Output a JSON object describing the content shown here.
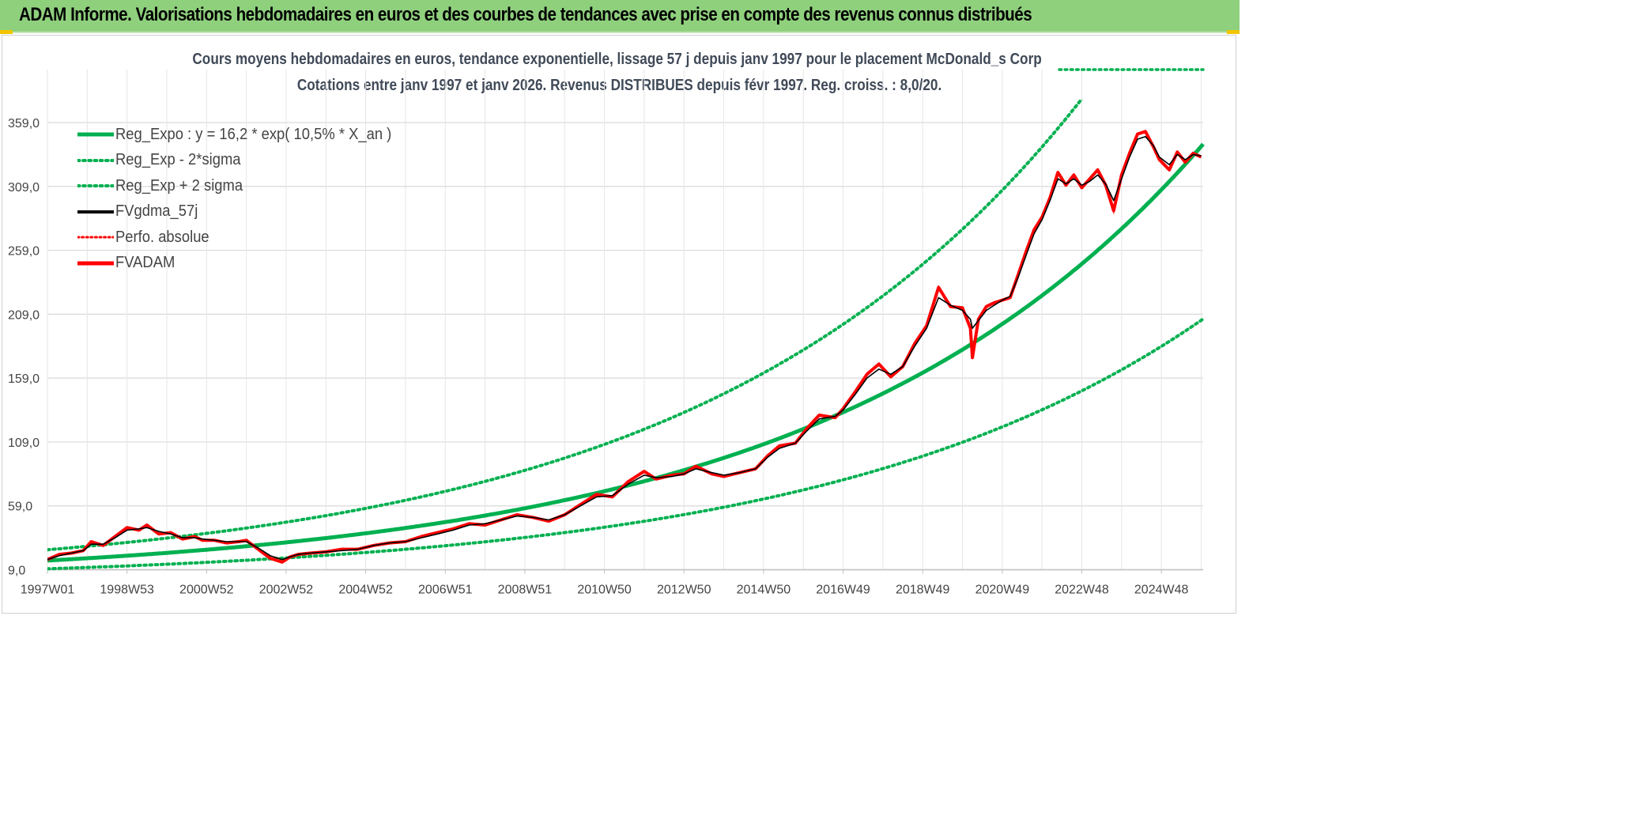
{
  "header": {
    "title": "ADAM Informe. Valorisations hebdomadaires en euros et des courbes de tendances avec prise en compte des revenus connus distribués"
  },
  "colors": {
    "header_bg": "#8fd07d",
    "corner_accent": "#f2c500",
    "reg_expo": "#00b050",
    "fvgdma": "#000000",
    "fvadam": "#ff0000",
    "perfo": "#ff0000",
    "grid": "#d9d9d9",
    "text": "#404a58"
  },
  "chart_data": {
    "type": "line",
    "title": "Cours moyens hebdomadaires en euros, tendance exponentielle, lissage 57 j depuis janv 1997 pour le placement McDonald_s Corp",
    "subtitle": "Cotations entre janv 1997 et janv 2026. Revenus DISTRIBUES depuis févr 1997. Reg. croiss. : 8,0/20.",
    "xlabel": "",
    "ylabel": "",
    "x_range_years": [
      1997.0,
      2026.05
    ],
    "ylim": [
      9.0,
      359.0
    ],
    "y_ticks": [
      "9,0",
      "59,0",
      "109,0",
      "159,0",
      "209,0",
      "259,0",
      "309,0",
      "359,0"
    ],
    "y_tick_values": [
      9,
      59,
      109,
      159,
      209,
      259,
      309,
      359
    ],
    "x_tick_labels": [
      "1997W01",
      "1998W53",
      "2000W52",
      "2002W52",
      "2004W52",
      "2006W51",
      "2008W51",
      "2010W50",
      "2012W50",
      "2014W50",
      "2016W49",
      "2018W49",
      "2020W49",
      "2022W48",
      "2024W48"
    ],
    "x_tick_years": [
      1997.0,
      1999.0,
      2001.0,
      2003.0,
      2005.0,
      2007.0,
      2009.0,
      2011.0,
      2013.0,
      2015.0,
      2017.0,
      2019.0,
      2021.0,
      2023.0,
      2025.0
    ],
    "grid": true,
    "legend_position": "top-left",
    "legend": [
      "Reg_Expo : y = 16,2 * exp( 10,5% *  X_an )",
      "Reg_Exp - 2*sigma",
      "Reg_Exp + 2 sigma",
      "FVgdma_57j",
      "Perfo. absolue",
      "FVADAM"
    ],
    "regression": {
      "a": 16.2,
      "rate": 0.105,
      "lower_factor": 0.6,
      "upper_factor": 1.52
    },
    "series": [
      {
        "name": "FVADAM",
        "x": [
          1997.0,
          1997.3,
          1997.6,
          1997.9,
          1998.1,
          1998.4,
          1998.7,
          1999.0,
          1999.3,
          1999.5,
          1999.8,
          2000.1,
          2000.4,
          2000.7,
          2000.9,
          2001.2,
          2001.5,
          2001.8,
          2002.0,
          2002.3,
          2002.6,
          2002.9,
          2003.1,
          2003.3,
          2003.6,
          2004.0,
          2004.4,
          2004.8,
          2005.2,
          2005.6,
          2006.0,
          2006.4,
          2006.8,
          2007.2,
          2007.6,
          2008.0,
          2008.4,
          2008.8,
          2009.2,
          2009.6,
          2010.0,
          2010.4,
          2010.8,
          2011.2,
          2011.6,
          2012.0,
          2012.3,
          2012.7,
          2013.0,
          2013.3,
          2013.7,
          2014.0,
          2014.4,
          2014.8,
          2015.1,
          2015.4,
          2015.8,
          2016.1,
          2016.4,
          2016.8,
          2017.0,
          2017.3,
          2017.6,
          2017.9,
          2018.2,
          2018.5,
          2018.8,
          2019.1,
          2019.4,
          2019.7,
          2020.0,
          2020.2,
          2020.25,
          2020.4,
          2020.6,
          2020.8,
          2021.0,
          2021.2,
          2021.4,
          2021.6,
          2021.8,
          2022.0,
          2022.2,
          2022.4,
          2022.6,
          2022.8,
          2023.0,
          2023.2,
          2023.4,
          2023.6,
          2023.8,
          2024.0,
          2024.2,
          2024.4,
          2024.6,
          2024.8,
          2024.95,
          2025.2,
          2025.4,
          2025.6,
          2025.8,
          2026.0
        ],
        "values": [
          17,
          21,
          22,
          24,
          31,
          28,
          35,
          42,
          40,
          44,
          37,
          38,
          33,
          35,
          32,
          32,
          30,
          31,
          32,
          25,
          18,
          15,
          19,
          21,
          22,
          23,
          25,
          25,
          28,
          30,
          31,
          35,
          38,
          41,
          45,
          44,
          48,
          52,
          50,
          47,
          52,
          60,
          68,
          66,
          78,
          86,
          80,
          83,
          84,
          90,
          84,
          82,
          85,
          88,
          98,
          106,
          108,
          120,
          130,
          128,
          135,
          148,
          162,
          170,
          160,
          168,
          186,
          200,
          230,
          215,
          214,
          198,
          175,
          205,
          215,
          218,
          220,
          222,
          240,
          258,
          275,
          285,
          300,
          320,
          310,
          318,
          308,
          315,
          322,
          310,
          290,
          318,
          335,
          350,
          352,
          340,
          330,
          322,
          336,
          328,
          335,
          332
        ]
      },
      {
        "name": "FVgdma_57j",
        "x": [
          1997.0,
          1997.3,
          1997.6,
          1997.9,
          1998.1,
          1998.4,
          1998.7,
          1999.0,
          1999.3,
          1999.5,
          1999.8,
          2000.1,
          2000.4,
          2000.7,
          2000.9,
          2001.2,
          2001.5,
          2001.8,
          2002.0,
          2002.3,
          2002.6,
          2002.9,
          2003.1,
          2003.3,
          2003.6,
          2004.0,
          2004.4,
          2004.8,
          2005.2,
          2005.6,
          2006.0,
          2006.4,
          2006.8,
          2007.2,
          2007.6,
          2008.0,
          2008.4,
          2008.8,
          2009.2,
          2009.6,
          2010.0,
          2010.4,
          2010.8,
          2011.2,
          2011.6,
          2012.0,
          2012.3,
          2012.7,
          2013.0,
          2013.3,
          2013.7,
          2014.0,
          2014.4,
          2014.8,
          2015.1,
          2015.4,
          2015.8,
          2016.1,
          2016.4,
          2016.8,
          2017.0,
          2017.3,
          2017.6,
          2017.9,
          2018.2,
          2018.5,
          2018.8,
          2019.1,
          2019.4,
          2019.7,
          2020.0,
          2020.2,
          2020.25,
          2020.4,
          2020.6,
          2020.8,
          2021.0,
          2021.2,
          2021.4,
          2021.6,
          2021.8,
          2022.0,
          2022.2,
          2022.4,
          2022.6,
          2022.8,
          2023.0,
          2023.2,
          2023.4,
          2023.6,
          2023.8,
          2024.0,
          2024.2,
          2024.4,
          2024.6,
          2024.8,
          2024.95,
          2025.2,
          2025.4,
          2025.6,
          2025.8,
          2026.0
        ],
        "values": [
          17,
          20,
          22,
          24,
          29,
          29,
          34,
          40,
          41,
          42,
          39,
          37,
          34,
          34,
          33,
          32,
          31,
          31,
          31,
          26,
          20,
          17,
          19,
          21,
          22,
          23,
          24,
          25,
          28,
          30,
          31,
          34,
          37,
          40,
          44,
          45,
          48,
          51,
          50,
          48,
          52,
          59,
          66,
          67,
          76,
          83,
          81,
          82,
          84,
          88,
          85,
          83,
          85,
          88,
          97,
          104,
          108,
          118,
          127,
          129,
          134,
          146,
          159,
          166,
          162,
          168,
          184,
          198,
          222,
          216,
          212,
          205,
          198,
          204,
          212,
          216,
          220,
          223,
          238,
          255,
          272,
          283,
          298,
          315,
          311,
          315,
          310,
          313,
          318,
          311,
          298,
          315,
          332,
          346,
          348,
          341,
          332,
          326,
          334,
          330,
          334,
          333
        ]
      }
    ]
  }
}
